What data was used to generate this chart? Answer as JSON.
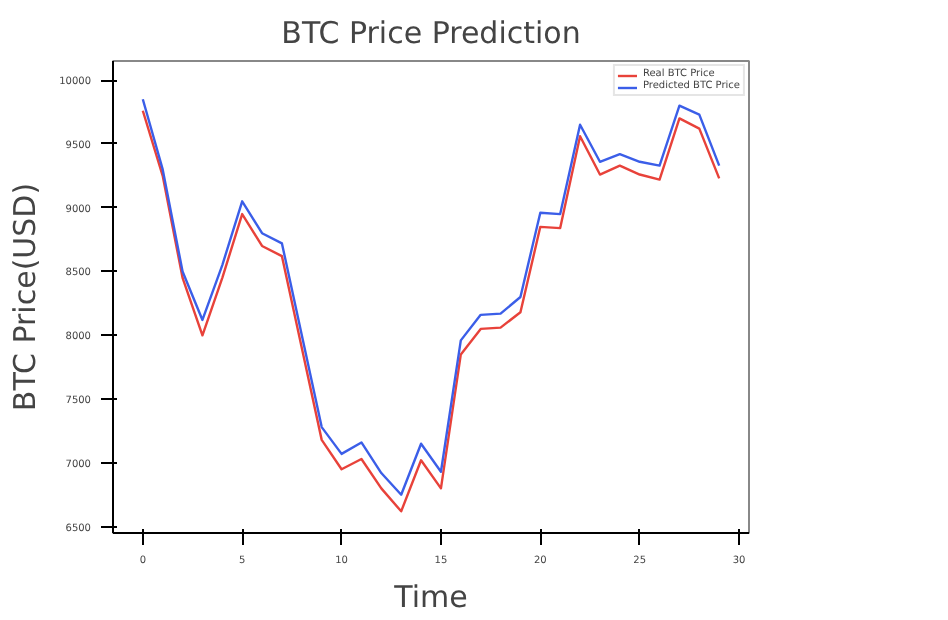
{
  "chart_data": {
    "type": "line",
    "title": "BTC Price Prediction",
    "xlabel": "Time",
    "ylabel": "BTC Price(USD)",
    "x": [
      0,
      1,
      2,
      3,
      4,
      5,
      6,
      7,
      8,
      9,
      10,
      11,
      12,
      13,
      14,
      15,
      16,
      17,
      18,
      19,
      20,
      21,
      22,
      23,
      24,
      25,
      26,
      27,
      28,
      29
    ],
    "series": [
      {
        "name": "Real BTC Price",
        "color": "#e8423a",
        "values": [
          9760,
          9250,
          8450,
          8000,
          8450,
          8950,
          8700,
          8620,
          7900,
          7180,
          6950,
          7030,
          6800,
          6620,
          7020,
          6800,
          7850,
          8050,
          8060,
          8180,
          8850,
          8840,
          9560,
          9260,
          9330,
          9260,
          9220,
          9700,
          9620,
          9230
        ]
      },
      {
        "name": "Predicted BTC Price",
        "color": "#3b5ee8",
        "values": [
          9850,
          9300,
          8500,
          8120,
          8550,
          9050,
          8800,
          8720,
          8000,
          7280,
          7070,
          7160,
          6920,
          6750,
          7150,
          6930,
          7960,
          8160,
          8170,
          8300,
          8960,
          8950,
          9650,
          9360,
          9420,
          9360,
          9330,
          9800,
          9730,
          9330
        ]
      }
    ],
    "xlim": [
      -1.5,
      30.5
    ],
    "xticks": [
      0,
      5,
      10,
      15,
      20,
      25,
      30
    ],
    "ylim": [
      6450,
      10150
    ],
    "yticks": [
      6500,
      7000,
      7500,
      8000,
      8500,
      9000,
      9500,
      10000
    ],
    "grid": false,
    "legend": "top right",
    "line_style": "solid",
    "marker": "none"
  }
}
